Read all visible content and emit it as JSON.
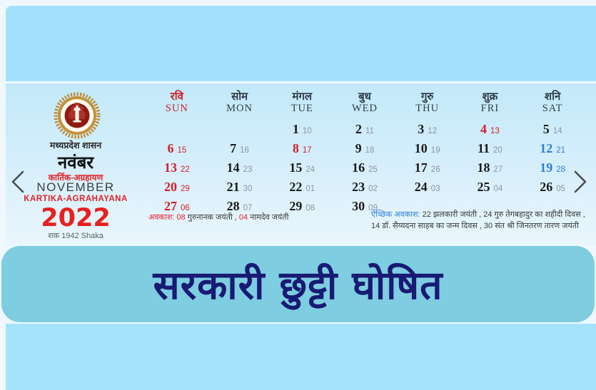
{
  "banner": {
    "text": "सरकारी छुट्टी घोषित",
    "bg_color": "#7ecde1",
    "text_color": "#181a73"
  },
  "nav": {
    "prev_arrow": "left-chevron",
    "next_arrow": "right-chevron"
  },
  "calendar": {
    "government": "मध्यप्रदेश शासन",
    "month_hindi": "नवंबर",
    "lunar_months_hindi": "कार्तिक-अग्रहायण",
    "month_english": "NOVEMBER",
    "lunar_months_english": "KARTIKA-AGRAHAYANA",
    "year": "2022",
    "era": "शक 1942 Shaka",
    "accent_red": "#d22027",
    "accent_blue": "#2e7fd8",
    "day_headers": [
      {
        "hindi": "रवि",
        "english": "SUN",
        "type": "sun"
      },
      {
        "hindi": "सोम",
        "english": "MON",
        "type": "normal"
      },
      {
        "hindi": "मंगल",
        "english": "TUE",
        "type": "normal"
      },
      {
        "hindi": "बुध",
        "english": "WED",
        "type": "normal"
      },
      {
        "hindi": "गुरु",
        "english": "THU",
        "type": "normal"
      },
      {
        "hindi": "शुक्र",
        "english": "FRI",
        "type": "normal"
      },
      {
        "hindi": "शनि",
        "english": "SAT",
        "type": "normal"
      }
    ],
    "weeks": [
      [
        null,
        null,
        {
          "day": "1",
          "tithi": "10",
          "type": "normal"
        },
        {
          "day": "2",
          "tithi": "11",
          "type": "normal"
        },
        {
          "day": "3",
          "tithi": "12",
          "type": "normal"
        },
        {
          "day": "4",
          "tithi": "13",
          "type": "holiday"
        },
        {
          "day": "5",
          "tithi": "14",
          "type": "normal"
        }
      ],
      [
        {
          "day": "6",
          "tithi": "15",
          "type": "holiday"
        },
        {
          "day": "7",
          "tithi": "16",
          "type": "normal"
        },
        {
          "day": "8",
          "tithi": "17",
          "type": "holiday"
        },
        {
          "day": "9",
          "tithi": "18",
          "type": "normal"
        },
        {
          "day": "10",
          "tithi": "19",
          "type": "normal"
        },
        {
          "day": "11",
          "tithi": "20",
          "type": "normal"
        },
        {
          "day": "12",
          "tithi": "21",
          "type": "special"
        }
      ],
      [
        {
          "day": "13",
          "tithi": "22",
          "type": "holiday"
        },
        {
          "day": "14",
          "tithi": "23",
          "type": "normal"
        },
        {
          "day": "15",
          "tithi": "24",
          "type": "normal"
        },
        {
          "day": "16",
          "tithi": "25",
          "type": "normal"
        },
        {
          "day": "17",
          "tithi": "26",
          "type": "normal"
        },
        {
          "day": "18",
          "tithi": "27",
          "type": "normal"
        },
        {
          "day": "19",
          "tithi": "28",
          "type": "special"
        }
      ],
      [
        {
          "day": "20",
          "tithi": "29",
          "type": "holiday"
        },
        {
          "day": "21",
          "tithi": "30",
          "type": "normal"
        },
        {
          "day": "22",
          "tithi": "01",
          "type": "normal"
        },
        {
          "day": "23",
          "tithi": "02",
          "type": "normal"
        },
        {
          "day": "24",
          "tithi": "03",
          "type": "normal"
        },
        {
          "day": "25",
          "tithi": "04",
          "type": "normal"
        },
        {
          "day": "26",
          "tithi": "05",
          "type": "normal"
        }
      ],
      [
        {
          "day": "27",
          "tithi": "06",
          "type": "holiday"
        },
        {
          "day": "28",
          "tithi": "07",
          "type": "normal"
        },
        {
          "day": "29",
          "tithi": "08",
          "type": "normal"
        },
        {
          "day": "30",
          "tithi": "09",
          "type": "normal"
        },
        null,
        null,
        null
      ]
    ],
    "holiday_note": {
      "segments": [
        {
          "text": "अवकाश: ",
          "color": "red"
        },
        {
          "text": "08",
          "color": "red"
        },
        {
          "text": " गुरुनानक जयंती , ",
          "color": "dark"
        },
        {
          "text": "04",
          "color": "red"
        },
        {
          "text": " नामदेव जयंती",
          "color": "dark"
        }
      ]
    },
    "optional_holiday_note": {
      "segments": [
        {
          "text": "ऐच्छिक अवकाश: ",
          "color": "blue"
        },
        {
          "text": "22 झलकारी जयंती , 24 गुरु तेगबहादुर का शहीदी दिवस , 14 डॉ. सैय्यदना साहब का जन्म दिवस , 30 संत श्री जिनतरण तारण जयंती",
          "color": "dark"
        }
      ]
    }
  }
}
